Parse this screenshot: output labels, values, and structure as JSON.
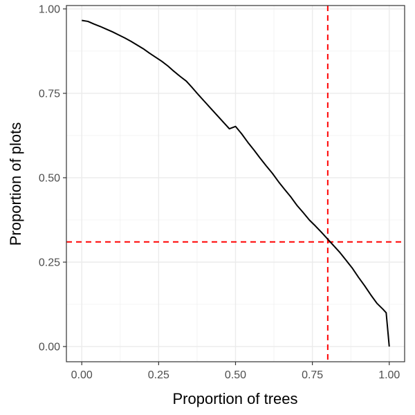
{
  "chart_data": {
    "type": "line",
    "title": "",
    "xlabel": "Proportion of trees",
    "ylabel": "Proportion of plots",
    "xlim": [
      -0.05,
      1.05
    ],
    "ylim": [
      -0.045,
      1.01
    ],
    "x_ticks": [
      0.0,
      0.25,
      0.5,
      0.75,
      1.0
    ],
    "x_tick_labels": [
      "0.00",
      "0.25",
      "0.50",
      "0.75",
      "1.00"
    ],
    "y_ticks": [
      0.0,
      0.25,
      0.5,
      0.75,
      1.0
    ],
    "y_tick_labels": [
      "0.00",
      "0.25",
      "0.50",
      "0.75",
      "1.00"
    ],
    "grid": true,
    "legend": "none",
    "series": [
      {
        "color": "#000000",
        "x": [
          0.0,
          0.02,
          0.04,
          0.06,
          0.08,
          0.1,
          0.12,
          0.14,
          0.16,
          0.18,
          0.2,
          0.22,
          0.24,
          0.26,
          0.28,
          0.3,
          0.32,
          0.34,
          0.36,
          0.38,
          0.4,
          0.42,
          0.44,
          0.46,
          0.48,
          0.5,
          0.52,
          0.54,
          0.56,
          0.58,
          0.6,
          0.62,
          0.64,
          0.66,
          0.68,
          0.7,
          0.72,
          0.74,
          0.76,
          0.78,
          0.8,
          0.82,
          0.84,
          0.86,
          0.88,
          0.9,
          0.92,
          0.94,
          0.96,
          0.98,
          0.99,
          1.0
        ],
        "y": [
          0.966,
          0.963,
          0.955,
          0.948,
          0.94,
          0.932,
          0.923,
          0.914,
          0.904,
          0.893,
          0.882,
          0.869,
          0.857,
          0.845,
          0.831,
          0.815,
          0.8,
          0.786,
          0.766,
          0.745,
          0.725,
          0.705,
          0.685,
          0.665,
          0.645,
          0.652,
          0.63,
          0.605,
          0.582,
          0.558,
          0.535,
          0.513,
          0.488,
          0.465,
          0.443,
          0.418,
          0.397,
          0.375,
          0.357,
          0.338,
          0.318,
          0.298,
          0.278,
          0.255,
          0.232,
          0.205,
          0.18,
          0.153,
          0.128,
          0.11,
          0.1,
          0.0
        ]
      }
    ],
    "reference_lines": {
      "color": "#ff0000",
      "vertical_x": 0.8,
      "horizontal_y": 0.31
    }
  }
}
